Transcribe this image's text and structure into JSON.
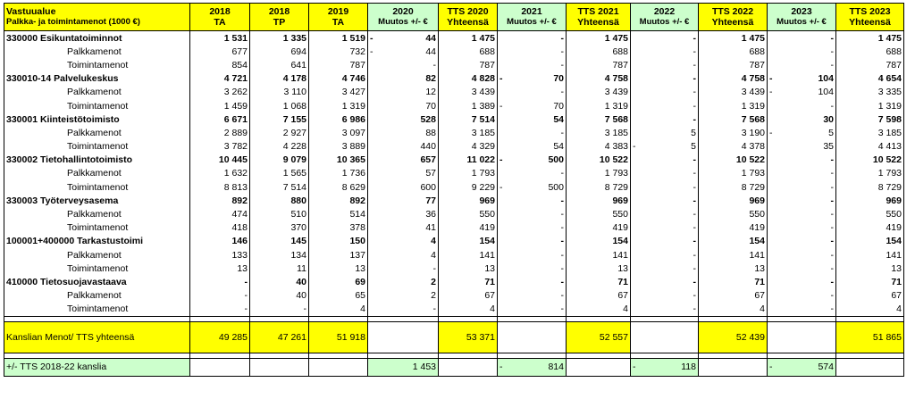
{
  "header": {
    "label_line1": "Vastuualue",
    "label_line2": "Palkka- ja toimintamenot (1000 €)",
    "columns": [
      {
        "line1": "2018",
        "line2": "TA"
      },
      {
        "line1": "2018",
        "line2": "TP"
      },
      {
        "line1": "2019",
        "line2": "TA"
      },
      {
        "line1": "2020",
        "line2": "Muutos +/- €"
      },
      {
        "line1": "TTS 2020",
        "line2": "Yhteensä"
      },
      {
        "line1": "2021",
        "line2": "Muutos +/- €"
      },
      {
        "line1": "TTS 2021",
        "line2": "Yhteensä"
      },
      {
        "line1": "2022",
        "line2": "Muutos +/- €"
      },
      {
        "line1": "TTS 2022",
        "line2": "Yhteensä"
      },
      {
        "line1": "2023",
        "line2": "Muutos +/- €"
      },
      {
        "line1": "TTS 2023",
        "line2": "Yhteensä"
      }
    ]
  },
  "rows": [
    {
      "type": "group",
      "name": "330000 Esikuntatoiminnot",
      "cells": [
        "1 531",
        "1 335",
        "1 519",
        "-     44",
        "1 475",
        "-",
        "1 475",
        "-",
        "1 475",
        "-",
        "1 475"
      ]
    },
    {
      "type": "sub",
      "name": "Palkkamenot",
      "cells": [
        "677",
        "694",
        "732",
        "-     44",
        "688",
        "-",
        "688",
        "-",
        "688",
        "-",
        "688"
      ]
    },
    {
      "type": "sub",
      "name": "Toimintamenot",
      "cells": [
        "854",
        "641",
        "787",
        "-",
        "787",
        "-",
        "787",
        "-",
        "787",
        "-",
        "787"
      ]
    },
    {
      "type": "group",
      "name": "330010-14 Palvelukeskus",
      "cells": [
        "4 721",
        "4 178",
        "4 746",
        "82",
        "4 828",
        "-     70",
        "4 758",
        "-",
        "4 758",
        "-     104",
        "4 654"
      ]
    },
    {
      "type": "sub",
      "name": "Palkkamenot",
      "cells": [
        "3 262",
        "3 110",
        "3 427",
        "12",
        "3 439",
        "-",
        "3 439",
        "-",
        "3 439",
        "-     104",
        "3 335"
      ]
    },
    {
      "type": "sub",
      "name": "Toimintamenot",
      "cells": [
        "1 459",
        "1 068",
        "1 319",
        "70",
        "1 389",
        "-     70",
        "1 319",
        "-",
        "1 319",
        "-",
        "1 319"
      ]
    },
    {
      "type": "group",
      "name": "330001 Kiinteistötoimisto",
      "cells": [
        "6 671",
        "7 155",
        "6 986",
        "528",
        "7 514",
        "54",
        "7 568",
        "-",
        "7 568",
        "30",
        "7 598"
      ]
    },
    {
      "type": "sub",
      "name": "Palkkamenot",
      "cells": [
        "2 889",
        "2 927",
        "3 097",
        "88",
        "3 185",
        "-",
        "3 185",
        "5",
        "3 190",
        "-     5",
        "3 185"
      ]
    },
    {
      "type": "sub",
      "name": "Toimintamenot",
      "cells": [
        "3 782",
        "4 228",
        "3 889",
        "440",
        "4 329",
        "54",
        "4 383",
        "-     5",
        "4 378",
        "35",
        "4 413"
      ]
    },
    {
      "type": "group",
      "name": "330002 Tietohallintotoimisto",
      "cells": [
        "10 445",
        "9 079",
        "10 365",
        "657",
        "11 022",
        "-     500",
        "10 522",
        "-",
        "10 522",
        "-",
        "10 522"
      ]
    },
    {
      "type": "sub",
      "name": "Palkkamenot",
      "cells": [
        "1 632",
        "1 565",
        "1 736",
        "57",
        "1 793",
        "-",
        "1 793",
        "-",
        "1 793",
        "-",
        "1 793"
      ]
    },
    {
      "type": "sub",
      "name": "Toimintamenot",
      "cells": [
        "8 813",
        "7 514",
        "8 629",
        "600",
        "9 229",
        "-     500",
        "8 729",
        "-",
        "8 729",
        "-",
        "8 729"
      ]
    },
    {
      "type": "group",
      "name": "330003 Työterveysasema",
      "cells": [
        "892",
        "880",
        "892",
        "77",
        "969",
        "-",
        "969",
        "-",
        "969",
        "-",
        "969"
      ]
    },
    {
      "type": "sub",
      "name": "Palkkamenot",
      "cells": [
        "474",
        "510",
        "514",
        "36",
        "550",
        "-",
        "550",
        "-",
        "550",
        "-",
        "550"
      ]
    },
    {
      "type": "sub",
      "name": "Toimintamenot",
      "cells": [
        "418",
        "370",
        "378",
        "41",
        "419",
        "-",
        "419",
        "-",
        "419",
        "-",
        "419"
      ]
    },
    {
      "type": "group",
      "name": "100001+400000 Tarkastustoimi",
      "cells": [
        "146",
        "145",
        "150",
        "4",
        "154",
        "-",
        "154",
        "-",
        "154",
        "-",
        "154"
      ]
    },
    {
      "type": "sub",
      "name": "Palkkamenot",
      "cells": [
        "133",
        "134",
        "137",
        "4",
        "141",
        "-",
        "141",
        "-",
        "141",
        "-",
        "141"
      ]
    },
    {
      "type": "sub",
      "name": "Toimintamenot",
      "cells": [
        "13",
        "11",
        "13",
        "-",
        "13",
        "-",
        "13",
        "-",
        "13",
        "-",
        "13"
      ]
    },
    {
      "type": "group",
      "name": "410000 Tietosuojavastaava",
      "cells": [
        "-",
        "40",
        "69",
        "2",
        "71",
        "-",
        "71",
        "-",
        "71",
        "-",
        "71"
      ]
    },
    {
      "type": "sub",
      "name": "Palkkamenot",
      "cells": [
        "-",
        "40",
        "65",
        "2",
        "67",
        "-",
        "67",
        "-",
        "67",
        "-",
        "67"
      ]
    },
    {
      "type": "sub",
      "name": "Toimintamenot",
      "cells": [
        "-",
        "-",
        "4",
        "-",
        "4",
        "-",
        "4",
        "-",
        "4",
        "-",
        "4"
      ]
    }
  ],
  "total": {
    "name": "Kanslian Menot/ TTS yhteensä",
    "cells": [
      "49 285",
      "47 261",
      "51 918",
      "",
      "53 371",
      "",
      "52 557",
      "",
      "52 439",
      "",
      "51 865"
    ]
  },
  "diff": {
    "name": "+/- TTS 2018-22 kanslia",
    "cells": [
      "",
      "",
      "",
      "1 453",
      "",
      "-     814",
      "",
      "-     118",
      "",
      "-     574",
      ""
    ]
  },
  "colors": {
    "yellow": "#ffff00",
    "green": "#ccffcc"
  }
}
